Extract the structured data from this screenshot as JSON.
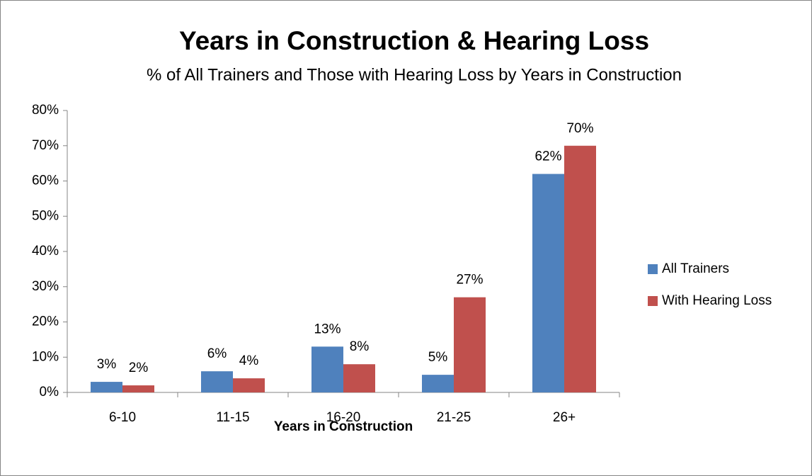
{
  "chart_data": {
    "type": "bar",
    "title": "Years in Construction & Hearing Loss",
    "subtitle": "% of All Trainers and Those with Hearing Loss by Years in Construction",
    "x_label": "Years in Construction",
    "categories": [
      "6-10",
      "11-15",
      "16-20",
      "21-25",
      "26+"
    ],
    "series": [
      {
        "name": "All Trainers",
        "color": "#4f81bd",
        "values": [
          3,
          6,
          13,
          5,
          62
        ],
        "value_labels": [
          "3%",
          "6%",
          "13%",
          "5%",
          "62%"
        ]
      },
      {
        "name": "With Hearing Loss",
        "color": "#c0504d",
        "values": [
          2,
          4,
          8,
          27,
          70
        ],
        "value_labels": [
          "2%",
          "4%",
          "8%",
          "27%",
          "70%"
        ]
      }
    ],
    "ylim": [
      0,
      80
    ],
    "yticks": [
      {
        "value": 0,
        "label": "0%"
      },
      {
        "value": 10,
        "label": "10%"
      },
      {
        "value": 20,
        "label": "20%"
      },
      {
        "value": 30,
        "label": "30%"
      },
      {
        "value": 40,
        "label": "40%"
      },
      {
        "value": 50,
        "label": "50%"
      },
      {
        "value": 60,
        "label": "60%"
      },
      {
        "value": 70,
        "label": "70%"
      },
      {
        "value": 80,
        "label": "80%"
      }
    ],
    "legend": "right",
    "grid": false
  }
}
